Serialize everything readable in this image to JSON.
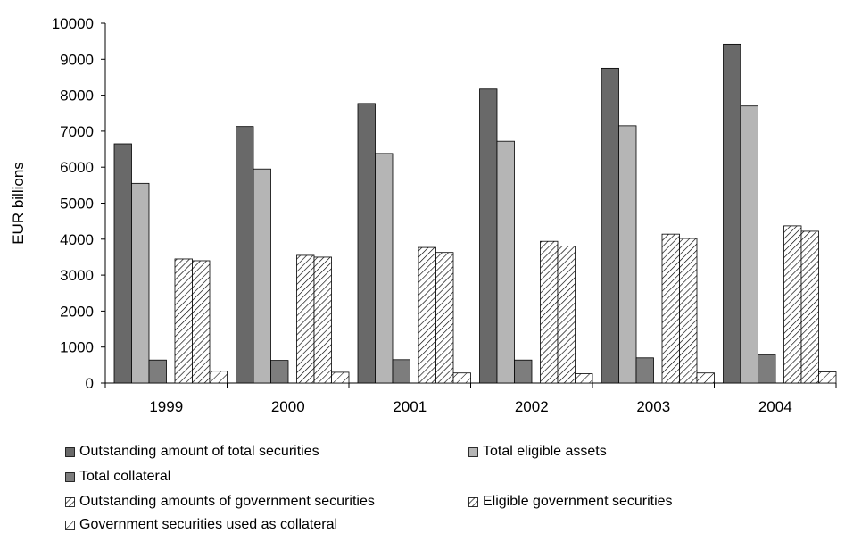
{
  "chart_data": {
    "type": "bar",
    "ylabel": "EUR billions",
    "ylim": [
      0,
      10000
    ],
    "yticks": [
      0,
      1000,
      2000,
      3000,
      4000,
      5000,
      6000,
      7000,
      8000,
      9000,
      10000
    ],
    "categories": [
      "1999",
      "2000",
      "2001",
      "2002",
      "2003",
      "2004"
    ],
    "legend_position": "bottom",
    "grid": false,
    "series": [
      {
        "name": "Outstanding amount of total securities",
        "pattern": "solid",
        "color": "#696969",
        "values": [
          6650,
          7130,
          7770,
          8170,
          8750,
          9420
        ]
      },
      {
        "name": "Total eligible assets",
        "pattern": "solid",
        "color": "#b5b5b5",
        "values": [
          5550,
          5950,
          6380,
          6720,
          7150,
          7700
        ]
      },
      {
        "name": "Total collateral",
        "pattern": "solid",
        "color": "#7d7d7d",
        "values": [
          640,
          630,
          650,
          640,
          700,
          790
        ]
      },
      {
        "name": "Outstanding amounts of government securities",
        "pattern": "hatch",
        "color": "#ffffff",
        "values": [
          3450,
          3550,
          3770,
          3940,
          4140,
          4370
        ]
      },
      {
        "name": "Eligible government securities",
        "pattern": "hatch",
        "color": "#ffffff",
        "values": [
          3400,
          3500,
          3630,
          3810,
          4020,
          4220
        ]
      },
      {
        "name": "Government securities used as collateral",
        "pattern": "hatch-sparse",
        "color": "#ffffff",
        "values": [
          330,
          300,
          280,
          260,
          280,
          310
        ]
      }
    ]
  }
}
